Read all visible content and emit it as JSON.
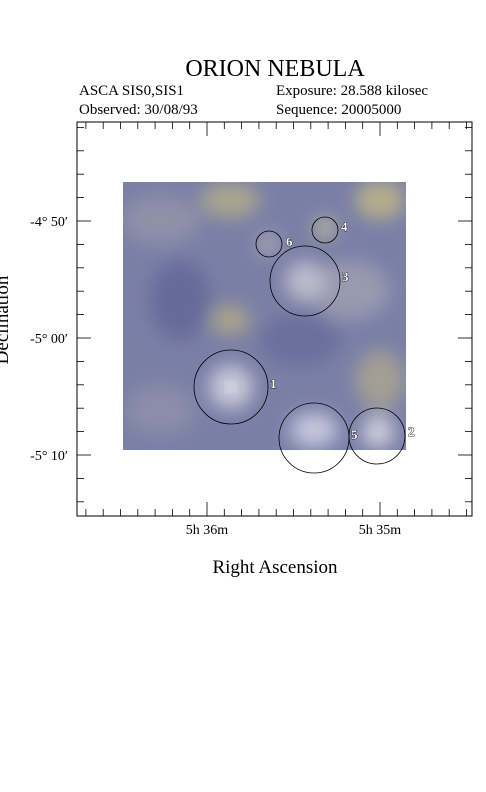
{
  "header": {
    "title": "ORION NEBULA",
    "instrument": "ASCA SIS0,SIS1",
    "exposure": "Exposure: 28.588 kilosec",
    "observed": "Observed: 30/08/93",
    "sequence": "Sequence: 20005000"
  },
  "axes": {
    "x_label": "Right Ascension",
    "y_label": "Declination",
    "x_ticks": [
      "5h 36m",
      "5h 35m"
    ],
    "y_ticks": [
      "-4° 50′",
      "-5° 00′",
      "-5° 10′"
    ]
  },
  "sources": [
    "1",
    "2",
    "3",
    "4",
    "5",
    "6"
  ]
}
